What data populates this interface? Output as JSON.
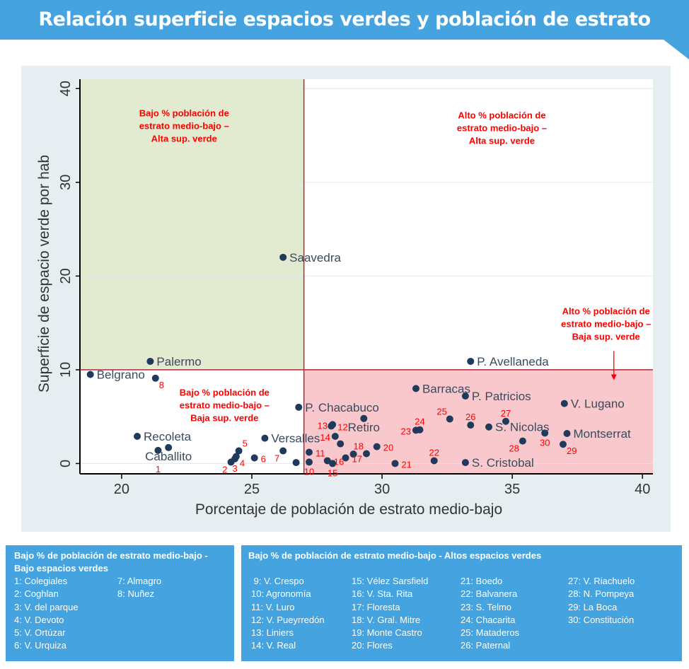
{
  "header": {
    "title": "Relación superficie espacios verdes y población de estrato medio-bajo"
  },
  "colors": {
    "header": "#45a3df",
    "point": "#1f3a5a",
    "quadrant_green": "#e2ead0",
    "quadrant_red": "#f8c8cc",
    "threshold_line": "#b02838",
    "annotation": "#ff0000"
  },
  "chart_data": {
    "type": "scatter",
    "xlabel": "Porcentaje de población de estrato medio-bajo",
    "ylabel": "Superficie de espacio verde por hab",
    "xlim": [
      18.4,
      40.4
    ],
    "ylim": [
      -1.1,
      41
    ],
    "xticks": [
      20,
      25,
      30,
      35,
      40
    ],
    "yticks": [
      0,
      10,
      20,
      30,
      40
    ],
    "grid": "horizontal",
    "thresholds": {
      "x": 27,
      "y": 10
    },
    "points": [
      {
        "label": "Belgrano",
        "x": 18.8,
        "y": 9.5,
        "pos": "right"
      },
      {
        "label": "Palermo",
        "x": 21.1,
        "y": 10.9,
        "pos": "right"
      },
      {
        "label": "Saavedra",
        "x": 26.2,
        "y": 22.0,
        "pos": "right"
      },
      {
        "label": "P. Avellaneda",
        "x": 33.4,
        "y": 10.9,
        "pos": "right"
      },
      {
        "label": "8",
        "x": 21.3,
        "y": 9.1,
        "pos": "below-right"
      },
      {
        "label": "Barracas",
        "x": 31.3,
        "y": 8.0,
        "pos": "right"
      },
      {
        "label": "P. Patricios",
        "x": 33.2,
        "y": 7.2,
        "pos": "right"
      },
      {
        "label": "V. Lugano",
        "x": 37.0,
        "y": 6.4,
        "pos": "right"
      },
      {
        "label": "P. Chacabuco",
        "x": 26.8,
        "y": 6.0,
        "pos": "right"
      },
      {
        "label": "Retiro",
        "x": 29.3,
        "y": 4.8,
        "pos": "right"
      },
      {
        "label": "S. Nicolas",
        "x": 34.1,
        "y": 3.9,
        "pos": "right"
      },
      {
        "label": "Montserrat",
        "x": 37.1,
        "y": 3.2,
        "pos": "right"
      },
      {
        "label": "S. Cristobal",
        "x": 33.2,
        "y": 0.1,
        "pos": "right"
      },
      {
        "label": "Recoleta",
        "x": 20.6,
        "y": 2.9,
        "pos": "right"
      },
      {
        "label": "Caballito",
        "x": 21.8,
        "y": 1.7,
        "pos": "right"
      },
      {
        "label": "Versalles",
        "x": 25.5,
        "y": 2.7,
        "pos": "right"
      },
      {
        "label": "1",
        "x": 21.4,
        "y": 1.4,
        "pos": "below-left"
      },
      {
        "label": "2",
        "x": 24.2,
        "y": 0.15,
        "pos": "below-left"
      },
      {
        "label": "3",
        "x": 24.35,
        "y": 0.5,
        "pos": "below"
      },
      {
        "label": "4",
        "x": 24.4,
        "y": 0.75,
        "pos": "below-right"
      },
      {
        "label": "5",
        "x": 24.5,
        "y": 1.35,
        "pos": "above-right"
      },
      {
        "label": "6",
        "x": 25.1,
        "y": 0.6,
        "pos": "right"
      },
      {
        "label": "7",
        "x": 26.2,
        "y": 1.35,
        "pos": "below-left"
      },
      {
        "x": 26.7,
        "y": 0.1
      },
      {
        "label": "10",
        "x": 27.2,
        "y": 0.15,
        "pos": "below"
      },
      {
        "label": "11",
        "x": 27.2,
        "y": 1.2,
        "pos": "above"
      },
      {
        "label": "12",
        "x": 28.05,
        "y": 4.0,
        "pos": "above-left"
      },
      {
        "label": "13",
        "x": 28.1,
        "y": 4.15,
        "pos": "left"
      },
      {
        "label": "14",
        "x": 28.2,
        "y": 2.9,
        "pos": "left"
      },
      {
        "label": "15",
        "x": 28.1,
        "y": 0.0,
        "pos": "below"
      },
      {
        "label": "16",
        "x": 27.9,
        "y": 0.3,
        "pos": "above-left"
      },
      {
        "label": "17",
        "x": 28.6,
        "y": 0.6,
        "pos": "below"
      },
      {
        "label": "18",
        "x": 29.4,
        "y": 1.05,
        "pos": "above-left"
      },
      {
        "x": 28.4,
        "y": 2.1
      },
      {
        "x": 28.9,
        "y": 1.0
      },
      {
        "label": "20",
        "x": 29.8,
        "y": 1.8,
        "pos": "above"
      },
      {
        "label": "21",
        "x": 30.5,
        "y": 0.0,
        "pos": "above-left"
      },
      {
        "label": "22",
        "x": 32.0,
        "y": 0.3,
        "pos": "above"
      },
      {
        "label": "23",
        "x": 31.3,
        "y": 3.55,
        "pos": "left"
      },
      {
        "label": "24",
        "x": 31.45,
        "y": 3.6,
        "pos": "above"
      },
      {
        "label": "25",
        "x": 32.6,
        "y": 4.75,
        "pos": "above-left"
      },
      {
        "label": "26",
        "x": 33.4,
        "y": 4.1,
        "pos": "above"
      },
      {
        "label": "27",
        "x": 34.75,
        "y": 4.5,
        "pos": "above"
      },
      {
        "label": "28",
        "x": 35.4,
        "y": 2.4,
        "pos": "below-left"
      },
      {
        "label": "29",
        "x": 36.95,
        "y": 2.05,
        "pos": "below-right"
      },
      {
        "label": "30",
        "x": 36.25,
        "y": 3.25,
        "pos": "below"
      }
    ],
    "annotations": [
      {
        "lines": [
          "Bajo % población de",
          "estrato medio-bajo –",
          "Alta sup. verde"
        ],
        "x": 22.4,
        "y": 37.4
      },
      {
        "lines": [
          "Alto % población de",
          "estrato medio-bajo –",
          "Alta sup. verde"
        ],
        "x": 34.6,
        "y": 37.2
      },
      {
        "lines": [
          "Alto % población de",
          "estrato medio-bajo –",
          "Baja sup. verde"
        ],
        "x": 38.6,
        "y": 16.3
      },
      {
        "lines": [
          "Bajo % población de",
          "estrato medio-bajo –",
          "Baja sup. verde"
        ],
        "x": 23.95,
        "y": 7.6
      }
    ],
    "arrow": {
      "x": 38.9,
      "y_from": 12.0,
      "y_to": 8.9
    }
  },
  "legends": [
    {
      "title_lines": [
        "Bajo %  de población de estrato medio-bajo -",
        "Bajo espacios verdes"
      ],
      "columns": [
        [
          "1: Colegiales",
          "2: Coghlan",
          "3: V. del parque",
          "4: V. Devoto",
          "5: V. Ortúzar",
          "6: V. Urquiza"
        ],
        [
          "7: Almagro",
          "8: Nuñez"
        ]
      ]
    },
    {
      "title_lines": [
        "Bajo %  de población de estrato medio-bajo - Altos espacios verdes"
      ],
      "columns": [
        [
          " 9: V. Crespo",
          "10: Agronomía",
          "11: V. Luro",
          "12: V. Pueyrredón",
          "13: Liniers",
          "14: V. Real"
        ],
        [
          "15: Vélez Sarsfield",
          "16: V. Sta. Rita",
          "17: Floresta",
          "18: V. Gral. Mitre",
          "19: Monte Castro",
          "20: Flores"
        ],
        [
          "21: Boedo",
          "22: Balvanera",
          "23: S. Telmo",
          "24: Chacarita",
          "25: Mataderos",
          "26: Paternal"
        ],
        [
          "27: V. Riachuelo",
          "28: N. Pompeya",
          "29: La Boca",
          "30: Constitución"
        ]
      ]
    }
  ]
}
